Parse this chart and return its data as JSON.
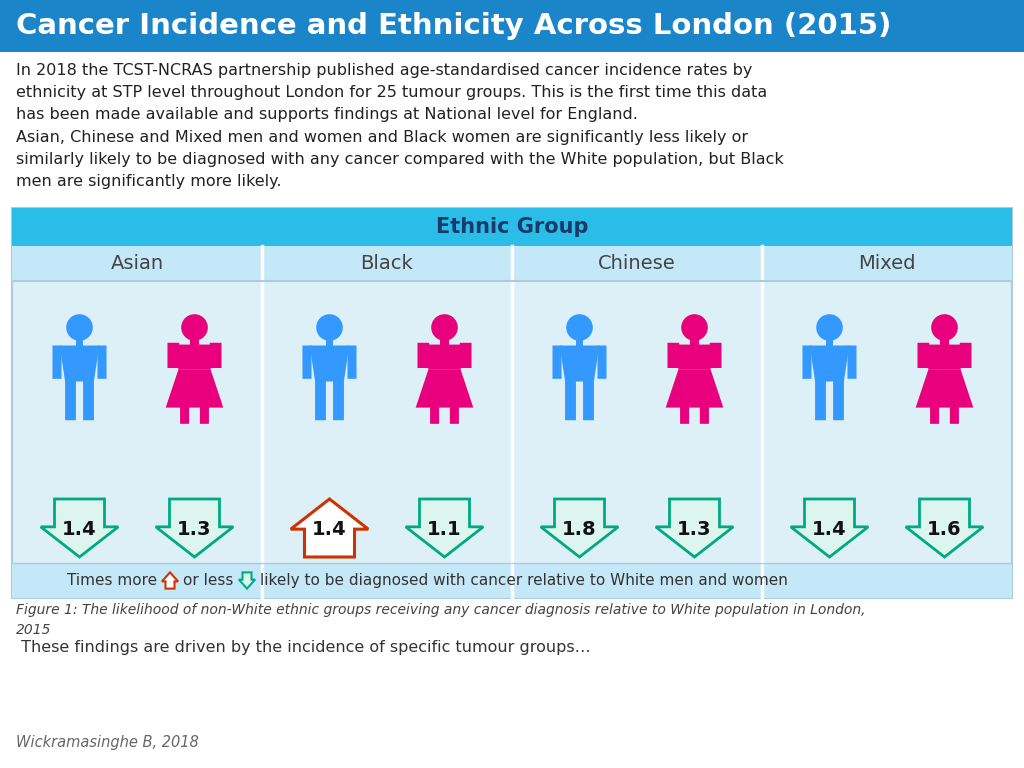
{
  "title": "Cancer Incidence and Ethnicity Across London (2015)",
  "title_bg": "#1a85c8",
  "title_color": "#ffffff",
  "body_bg": "#ffffff",
  "para1": "In 2018 the TCST-NCRAS partnership published age-standardised cancer incidence rates by\nethnicity at STP level throughout London for 25 tumour groups. This is the first time this data\nhas been made available and supports findings at National level for England.",
  "para2": "Asian, Chinese and Mixed men and women and Black women are significantly less likely or\nsimilarly likely to be diagnosed with any cancer compared with the White population, but Black\nmen are significantly more likely.",
  "table_header": "Ethnic Group",
  "table_header_bg": "#29bde8",
  "table_header_color": "#1a3a6a",
  "table_subheader_bg": "#c5e8f8",
  "table_content_bg": "#ddf0f8",
  "table_border": "#aaccdd",
  "groups": [
    "Asian",
    "Black",
    "Chinese",
    "Mixed"
  ],
  "group_label_color": "#444444",
  "male_color": "#3399ff",
  "female_color": "#e8007d",
  "arrow_up_color": "#cc3300",
  "arrow_down_fill": "#ddf5ef",
  "arrow_down_edge": "#00aa80",
  "values": [
    {
      "group": "Asian",
      "male": "1.4",
      "female": "1.3",
      "male_up": false,
      "female_up": false
    },
    {
      "group": "Black",
      "male": "1.4",
      "female": "1.1",
      "male_up": true,
      "female_up": false
    },
    {
      "group": "Chinese",
      "male": "1.8",
      "female": "1.3",
      "male_up": false,
      "female_up": false
    },
    {
      "group": "Mixed",
      "male": "1.4",
      "female": "1.6",
      "male_up": false,
      "female_up": false
    }
  ],
  "figure_caption": "Figure 1: The likelihood of non-White ethnic groups receiving any cancer diagnosis relative to White population in London,\n2015",
  "bottom_text": " These findings are driven by the incidence of specific tumour groups…",
  "citation": "Wickramasinghe B, 2018",
  "legend_left": "Times more ",
  "legend_mid": "or less ",
  "legend_right": "likely to be diagnosed with cancer relative to White men and women"
}
